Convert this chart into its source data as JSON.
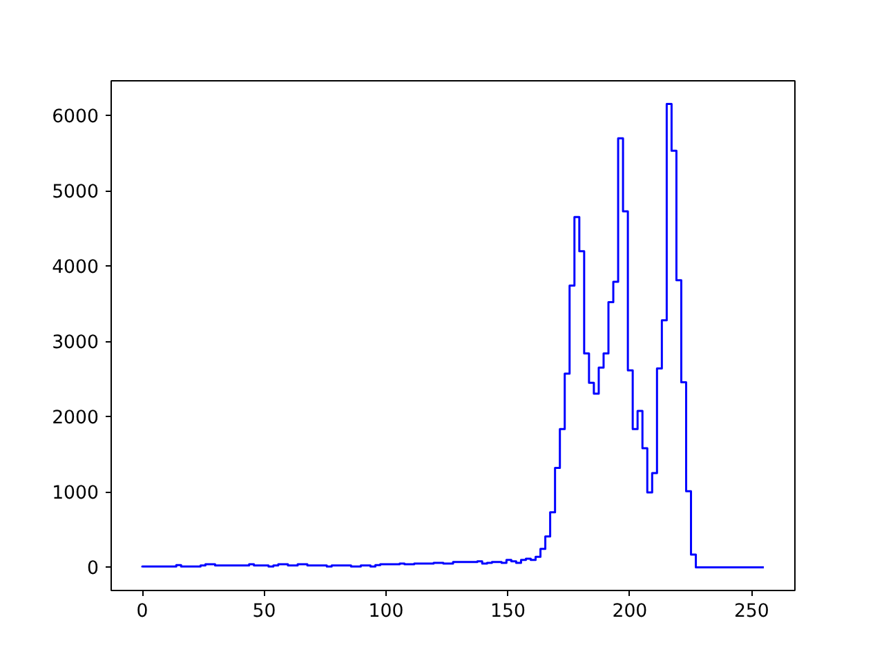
{
  "chart_data": {
    "type": "histogram",
    "color": "#0000ff",
    "bins": [
      0,
      1.99,
      3.98,
      5.98,
      7.97,
      9.96,
      11.95,
      13.95,
      15.94,
      17.93,
      19.92,
      21.91,
      23.91,
      25.9,
      27.89,
      29.88,
      31.88,
      33.87,
      35.86,
      37.85,
      39.84,
      41.84,
      43.83,
      45.82,
      47.81,
      49.8,
      51.8,
      53.79,
      55.78,
      57.77,
      59.77,
      61.76,
      63.75,
      65.74,
      67.73,
      69.73,
      71.72,
      73.71,
      75.7,
      77.7,
      79.69,
      81.68,
      83.67,
      85.66,
      87.66,
      89.65,
      91.64,
      93.63,
      95.63,
      97.62,
      99.61,
      101.6,
      103.59,
      105.59,
      107.58,
      109.57,
      111.56,
      113.55,
      115.55,
      117.54,
      119.53,
      121.52,
      123.52,
      125.51,
      127.5,
      129.49,
      131.48,
      133.48,
      135.47,
      137.46,
      139.45,
      141.45,
      143.44,
      145.43,
      147.42,
      149.41,
      151.41,
      153.4,
      155.39,
      157.38,
      159.38,
      161.37,
      163.36,
      165.35,
      167.34,
      169.34,
      171.33,
      173.32,
      175.31,
      177.3,
      179.3,
      181.29,
      183.28,
      185.27,
      187.27,
      189.26,
      191.25,
      193.24,
      195.23,
      197.23,
      199.22,
      201.21,
      203.2,
      205.2,
      207.19,
      209.18,
      211.17,
      213.16,
      215.16,
      217.15,
      219.14,
      221.13,
      223.13,
      225.12,
      227.11,
      229.1,
      231.09,
      233.09,
      235.08,
      237.07,
      239.06,
      241.05,
      243.05,
      245.04,
      247.03,
      249.02,
      251.02,
      253.01,
      255
    ],
    "values": [
      10,
      10,
      10,
      10,
      10,
      10,
      10,
      30,
      10,
      10,
      10,
      10,
      25,
      40,
      40,
      25,
      25,
      25,
      25,
      25,
      25,
      25,
      40,
      25,
      25,
      25,
      10,
      25,
      40,
      40,
      25,
      25,
      40,
      40,
      25,
      25,
      25,
      25,
      10,
      25,
      25,
      25,
      25,
      10,
      10,
      25,
      25,
      10,
      30,
      40,
      40,
      40,
      40,
      50,
      40,
      40,
      50,
      50,
      50,
      50,
      60,
      60,
      50,
      50,
      70,
      70,
      70,
      70,
      70,
      80,
      50,
      60,
      70,
      70,
      60,
      98,
      80,
      60,
      98,
      115,
      98,
      140,
      245,
      410,
      730,
      1320,
      1835,
      2570,
      3740,
      4650,
      4195,
      2840,
      2450,
      2305,
      2650,
      2840,
      3520,
      3790,
      5695,
      4725,
      2615,
      1835,
      2075,
      1580,
      995,
      1250,
      2640,
      3280,
      6150,
      5530,
      3810,
      2457,
      1010,
      170,
      0,
      0,
      0,
      0,
      0,
      0,
      0,
      0,
      0,
      0,
      0,
      0,
      0,
      0
    ],
    "xlim": [
      -12.75,
      267.75
    ],
    "ylim": [
      -307.5,
      6457.5
    ],
    "xticks": [
      0,
      50,
      100,
      150,
      200,
      250
    ],
    "yticks": [
      0,
      1000,
      2000,
      3000,
      4000,
      5000,
      6000
    ],
    "grid": false
  }
}
